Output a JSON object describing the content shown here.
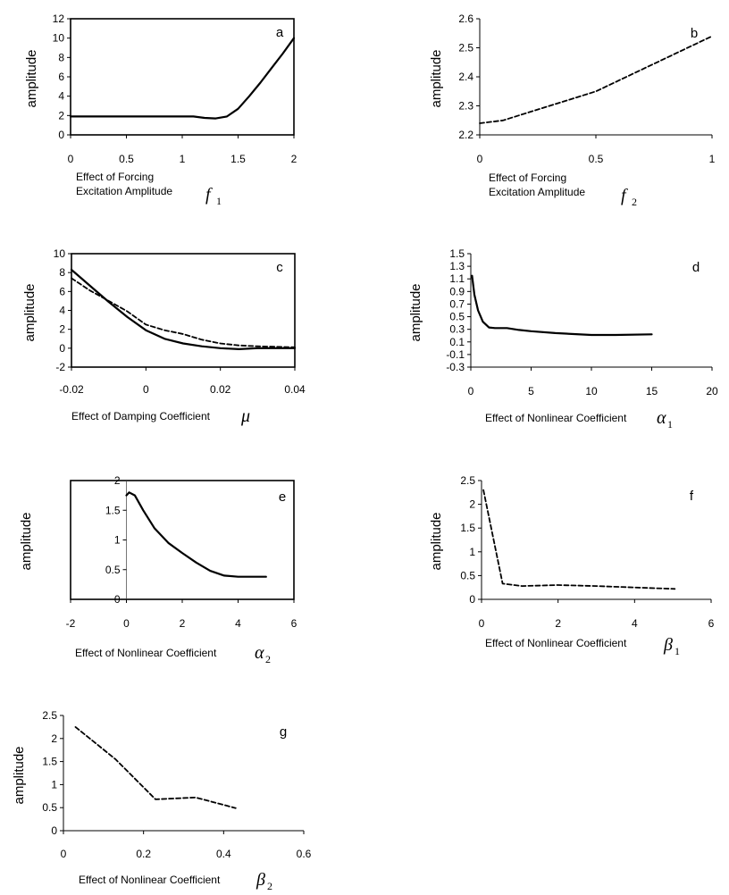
{
  "chart_data": [
    {
      "panel_label": "a",
      "type": "line",
      "ylabel": "amplitude",
      "xlabel": [
        "Effect of  Forcing",
        "Excitation Amplitude"
      ],
      "symbol": "f",
      "subscript": "1",
      "xlim": [
        0,
        2
      ],
      "ylim": [
        0,
        12
      ],
      "xticks": [
        0,
        0.5,
        1,
        1.5,
        2
      ],
      "xtick_labels": [
        "0",
        "0.5",
        "1",
        "1.5",
        "2"
      ],
      "yticks": [
        0,
        2,
        4,
        6,
        8,
        10,
        12
      ],
      "ytick_labels": [
        "0",
        "2",
        "4",
        "6",
        "8",
        "10",
        "12"
      ],
      "series": [
        {
          "name": "solid",
          "style": "solid",
          "x": [
            0,
            0.5,
            1.0,
            1.1,
            1.2,
            1.3,
            1.4,
            1.5,
            1.6,
            1.7,
            1.8,
            1.9,
            2.0
          ],
          "y": [
            1.9,
            1.9,
            1.9,
            1.9,
            1.75,
            1.7,
            1.9,
            2.7,
            4.0,
            5.4,
            6.9,
            8.4,
            10.0
          ]
        }
      ]
    },
    {
      "panel_label": "b",
      "type": "line",
      "ylabel": "amplitude",
      "xlabel": [
        "Effect of Forcing",
        "Excitation Amplitude"
      ],
      "symbol": "f",
      "subscript": "2",
      "xlim": [
        0,
        1
      ],
      "ylim": [
        2.2,
        2.6
      ],
      "xticks": [
        0,
        0.5,
        1
      ],
      "xtick_labels": [
        "0",
        "0.5",
        "1"
      ],
      "yticks": [
        2.2,
        2.3,
        2.4,
        2.5,
        2.6
      ],
      "ytick_labels": [
        "2.2",
        "2.3",
        "2.4",
        "2.5",
        "2.6"
      ],
      "series": [
        {
          "name": "dashed",
          "style": "dashed",
          "x": [
            0,
            0.1,
            0.5,
            1.0
          ],
          "y": [
            2.24,
            2.25,
            2.35,
            2.54
          ]
        }
      ]
    },
    {
      "panel_label": "c",
      "type": "line",
      "ylabel": "amplitude",
      "xlabel": [
        "Effect of Damping Coefficient"
      ],
      "symbol": "μ",
      "subscript": "",
      "xlim": [
        -0.02,
        0.04
      ],
      "ylim": [
        -2,
        10
      ],
      "xticks": [
        -0.02,
        0,
        0.02,
        0.04
      ],
      "xtick_labels": [
        "-0.02",
        "0",
        "0.02",
        "0.04"
      ],
      "yticks": [
        -2,
        0,
        2,
        4,
        6,
        8,
        10
      ],
      "ytick_labels": [
        "-2",
        "0",
        "2",
        "4",
        "6",
        "8",
        "10"
      ],
      "series": [
        {
          "name": "solid",
          "style": "solid",
          "x": [
            -0.02,
            -0.015,
            -0.01,
            -0.005,
            0,
            0.005,
            0.01,
            0.015,
            0.02,
            0.025,
            0.03,
            0.04
          ],
          "y": [
            8.3,
            6.6,
            4.9,
            3.3,
            1.9,
            1.0,
            0.5,
            0.2,
            0,
            -0.1,
            0,
            0
          ]
        },
        {
          "name": "dashed",
          "style": "dashed",
          "x": [
            -0.02,
            -0.015,
            -0.01,
            -0.005,
            0,
            0.005,
            0.01,
            0.015,
            0.02,
            0.025,
            0.03,
            0.04
          ],
          "y": [
            7.4,
            6.1,
            5.0,
            3.9,
            2.5,
            1.9,
            1.5,
            0.9,
            0.5,
            0.3,
            0.2,
            0.1
          ]
        }
      ]
    },
    {
      "panel_label": "d",
      "type": "line",
      "ylabel": "amplitude",
      "xlabel": [
        "Effect of Nonlinear  Coefficient"
      ],
      "symbol": "α",
      "subscript": "1",
      "xlim": [
        0,
        20
      ],
      "ylim": [
        -0.3,
        1.5
      ],
      "xticks": [
        0,
        5,
        10,
        15,
        20
      ],
      "xtick_labels": [
        "0",
        "5",
        "10",
        "15",
        "20"
      ],
      "yticks": [
        -0.3,
        -0.1,
        0.1,
        0.3,
        0.5,
        0.7,
        0.9,
        1.1,
        1.3,
        1.5
      ],
      "ytick_labels": [
        "-0.3",
        "-0.1",
        "0.1",
        "0.3",
        "0.5",
        "0.7",
        "0.9",
        "1.1",
        "1.3",
        "1.5"
      ],
      "series": [
        {
          "name": "solid",
          "style": "solid",
          "x": [
            0.1,
            0.3,
            0.6,
            1.0,
            1.5,
            2.0,
            3.0,
            4.0,
            5.0,
            7.0,
            10.0,
            12.0,
            15.0
          ],
          "y": [
            1.15,
            0.85,
            0.6,
            0.42,
            0.33,
            0.32,
            0.32,
            0.29,
            0.27,
            0.24,
            0.21,
            0.21,
            0.22
          ]
        }
      ]
    },
    {
      "panel_label": "e",
      "type": "line",
      "ylabel": "amplitude",
      "xlabel": [
        "Effect of Nonlinear  Coefficient"
      ],
      "symbol": "α",
      "subscript": "2",
      "xlim": [
        -2,
        6
      ],
      "ylim": [
        0,
        2
      ],
      "xticks": [
        -2,
        0,
        2,
        4,
        6
      ],
      "xtick_labels": [
        "-2",
        "0",
        "2",
        "4",
        "6"
      ],
      "yticks": [
        0,
        0.5,
        1,
        1.5,
        2
      ],
      "ytick_labels": [
        "0",
        "0.5",
        "1",
        "1.5",
        "2"
      ],
      "series": [
        {
          "name": "solid",
          "style": "solid",
          "x": [
            0,
            0.1,
            0.3,
            0.6,
            1.0,
            1.5,
            2.0,
            2.5,
            3.0,
            3.5,
            4.0,
            5.0
          ],
          "y": [
            1.75,
            1.8,
            1.75,
            1.5,
            1.2,
            0.95,
            0.78,
            0.62,
            0.48,
            0.4,
            0.38,
            0.38
          ]
        }
      ]
    },
    {
      "panel_label": "f",
      "type": "line",
      "ylabel": "amplitude",
      "xlabel": [
        "Effect of Nonlinear  Coefficient"
      ],
      "symbol": "β",
      "subscript": "1",
      "xlim": [
        0,
        6
      ],
      "ylim": [
        0,
        2.5
      ],
      "xticks": [
        0,
        2,
        4,
        6
      ],
      "xtick_labels": [
        "0",
        "2",
        "4",
        "6"
      ],
      "yticks": [
        0,
        0.5,
        1,
        1.5,
        2,
        2.5
      ],
      "ytick_labels": [
        "0",
        "0.5",
        "1",
        "1.5",
        "2",
        "2.5"
      ],
      "series": [
        {
          "name": "dashed",
          "style": "dashed",
          "x": [
            0.05,
            0.55,
            1.05,
            2.0,
            3.0,
            4.0,
            5.05
          ],
          "y": [
            2.3,
            0.33,
            0.28,
            0.3,
            0.28,
            0.25,
            0.22
          ]
        }
      ]
    },
    {
      "panel_label": "g",
      "type": "line",
      "ylabel": "amplitude",
      "xlabel": [
        "Effect of Nonlinear  Coefficient"
      ],
      "symbol": "β",
      "subscript": "2",
      "xlim": [
        0,
        0.6
      ],
      "ylim": [
        0,
        2.5
      ],
      "xticks": [
        0,
        0.2,
        0.4,
        0.6
      ],
      "xtick_labels": [
        "0",
        "0.2",
        "0.4",
        "0.6"
      ],
      "yticks": [
        0,
        0.5,
        1,
        1.5,
        2,
        2.5
      ],
      "ytick_labels": [
        "0",
        "0.5",
        "1",
        "1.5",
        "2",
        "2.5"
      ],
      "series": [
        {
          "name": "dashed",
          "style": "dashed",
          "x": [
            0.03,
            0.13,
            0.23,
            0.33,
            0.43
          ],
          "y": [
            2.25,
            1.55,
            0.68,
            0.72,
            0.49
          ]
        }
      ]
    }
  ]
}
